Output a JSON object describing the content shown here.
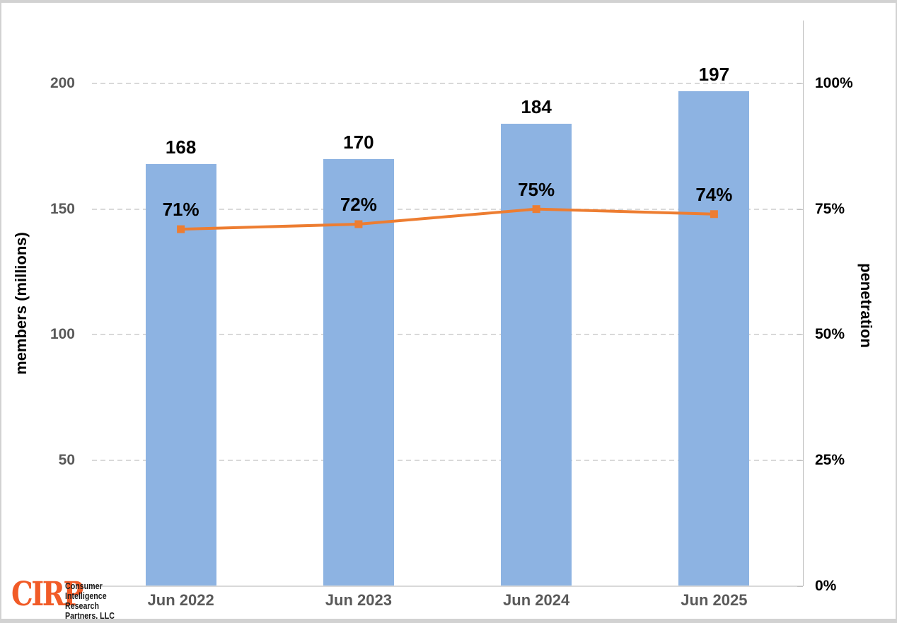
{
  "chart_data": {
    "type": "bar+line",
    "categories": [
      "Jun 2022",
      "Jun 2023",
      "Jun 2024",
      "Jun 2025"
    ],
    "series": [
      {
        "name": "members (millions)",
        "type": "bar",
        "axis": "left",
        "values": [
          168,
          170,
          184,
          197
        ],
        "labels": [
          "168",
          "170",
          "184",
          "197"
        ]
      },
      {
        "name": "penetration",
        "type": "line",
        "axis": "right",
        "marker": "square",
        "values": [
          71,
          72,
          75,
          74
        ],
        "labels": [
          "71%",
          "72%",
          "75%",
          "74%"
        ]
      }
    ],
    "left_axis": {
      "title": "members (millions)",
      "min": 0,
      "max": 225,
      "ticks": [
        {
          "value": 50,
          "label": "50"
        },
        {
          "value": 100,
          "label": "100"
        },
        {
          "value": 150,
          "label": "150"
        },
        {
          "value": 200,
          "label": "200"
        }
      ]
    },
    "right_axis": {
      "title": "penetration",
      "min": 0,
      "max": 112.5,
      "ticks": [
        {
          "value": 0,
          "label": "0%"
        },
        {
          "value": 25,
          "label": "25%"
        },
        {
          "value": 50,
          "label": "50%"
        },
        {
          "value": 75,
          "label": "75%"
        },
        {
          "value": 100,
          "label": "100%"
        }
      ]
    },
    "grid": "horizontal-dashed",
    "legend": "none",
    "title": ""
  },
  "colors": {
    "bar_fill": "#8db3e2",
    "line_stroke": "#ed7d31",
    "marker_fill": "#ed7d31",
    "gridline": "#d9d9d9",
    "axis_line": "#bfbfbf",
    "tick_text": "#595959",
    "label_text": "#000000",
    "logo_orange": "#f15b27"
  },
  "logo": {
    "wordmark": "CIRP",
    "lines": [
      "Consumer",
      "Intelligence",
      "Research",
      "Partners, LLC"
    ]
  }
}
